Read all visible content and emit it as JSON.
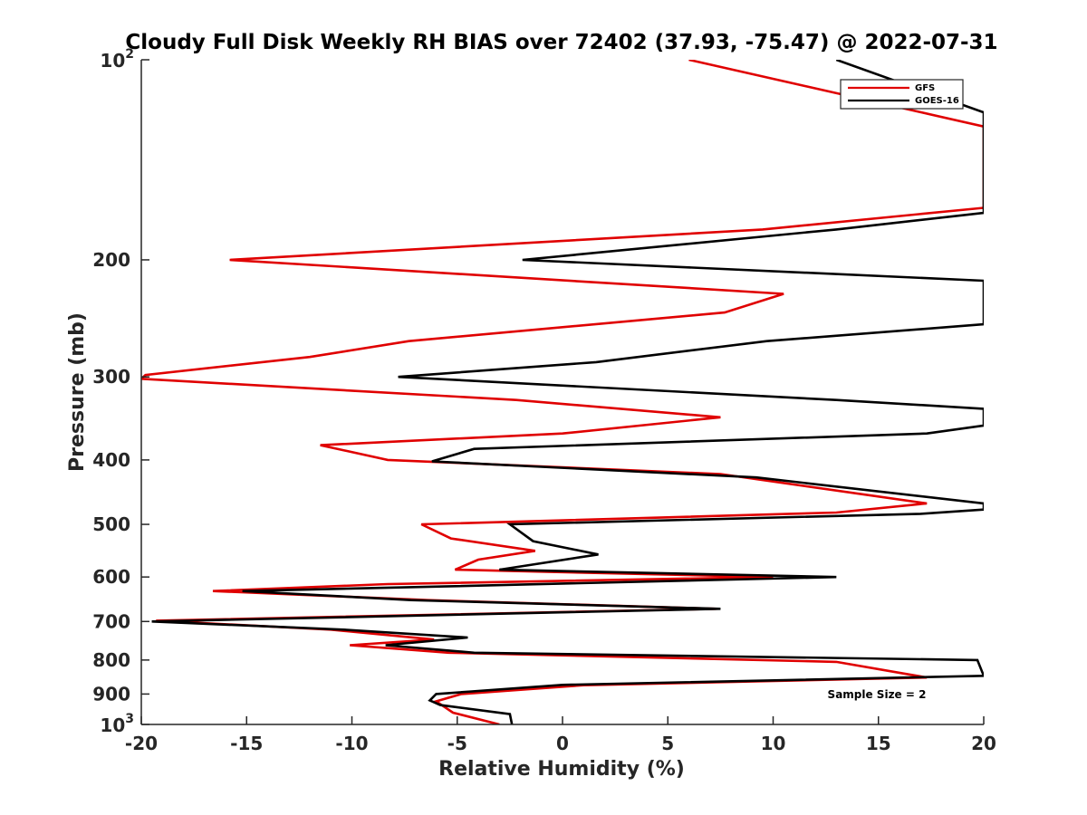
{
  "chart_data": {
    "type": "line",
    "title": "Cloudy Full Disk Weekly RH BIAS over 72402 (37.93, -75.47) @ 2022-07-31",
    "xlabel": "Relative Humidity (%)",
    "ylabel": "Pressure (mb)",
    "xlim": [
      -20,
      20
    ],
    "ylim": [
      100,
      1000
    ],
    "yscale": "log",
    "y_reversed": true,
    "x_ticks": [
      "-20",
      "-15",
      "-10",
      "-5",
      "0",
      "5",
      "10",
      "15",
      "20"
    ],
    "y_ticks": [
      {
        "value": 100,
        "base": "10",
        "exp": "2"
      },
      {
        "value": 200,
        "label": "200"
      },
      {
        "value": 300,
        "label": "300"
      },
      {
        "value": 400,
        "label": "400"
      },
      {
        "value": 500,
        "label": "500"
      },
      {
        "value": 600,
        "label": "600"
      },
      {
        "value": 700,
        "label": "700"
      },
      {
        "value": 800,
        "label": "800"
      },
      {
        "value": 900,
        "label": "900"
      },
      {
        "value": 1000,
        "base": "10",
        "exp": "3"
      }
    ],
    "grid": false,
    "legend_position": "top-right",
    "annotation": "Sample Size = 2",
    "series": [
      {
        "name": "GFS",
        "color": "#e00000",
        "points": [
          [
            6,
            100
          ],
          [
            20,
            126
          ],
          [
            20,
            167
          ],
          [
            9.5,
            180
          ],
          [
            -15.8,
            200
          ],
          [
            10.5,
            225
          ],
          [
            7.7,
            240
          ],
          [
            -7.3,
            265
          ],
          [
            -12,
            280
          ],
          [
            -19.8,
            298
          ],
          [
            -20,
            302
          ],
          [
            -2.2,
            325
          ],
          [
            7.5,
            345
          ],
          [
            0,
            365
          ],
          [
            -11.5,
            380
          ],
          [
            -8.3,
            400
          ],
          [
            7.5,
            420
          ],
          [
            17.3,
            465
          ],
          [
            13,
            480
          ],
          [
            -6.7,
            500
          ],
          [
            -5.3,
            525
          ],
          [
            -1.3,
            548
          ],
          [
            -4,
            565
          ],
          [
            -5.1,
            585
          ],
          [
            10,
            600
          ],
          [
            -8.3,
            615
          ],
          [
            -16.6,
            630
          ],
          [
            -6.4,
            650
          ],
          [
            7.3,
            670
          ],
          [
            -19.3,
            698
          ],
          [
            -11,
            720
          ],
          [
            -6.1,
            745
          ],
          [
            -10.1,
            760
          ],
          [
            -5.4,
            780
          ],
          [
            13,
            805
          ],
          [
            17.3,
            850
          ],
          [
            1,
            873
          ],
          [
            -4.8,
            900
          ],
          [
            -6,
            923
          ],
          [
            -5.2,
            960
          ],
          [
            -3,
            1000
          ]
        ]
      },
      {
        "name": "GOES-16",
        "color": "#000000",
        "points": [
          [
            13,
            100
          ],
          [
            20,
            120
          ],
          [
            20,
            170
          ],
          [
            13,
            180
          ],
          [
            -1.9,
            200
          ],
          [
            20,
            215
          ],
          [
            20,
            250
          ],
          [
            9.7,
            265
          ],
          [
            1.6,
            285
          ],
          [
            -7.8,
            300
          ],
          [
            13,
            325
          ],
          [
            20,
            335
          ],
          [
            20,
            355
          ],
          [
            17.3,
            365
          ],
          [
            -4.2,
            385
          ],
          [
            -6.2,
            402
          ],
          [
            9.2,
            425
          ],
          [
            20,
            465
          ],
          [
            20,
            475
          ],
          [
            17,
            482
          ],
          [
            -2.5,
            500
          ],
          [
            -1.4,
            530
          ],
          [
            1.7,
            555
          ],
          [
            -3,
            585
          ],
          [
            13,
            600
          ],
          [
            -5.6,
            620
          ],
          [
            -15.2,
            630
          ],
          [
            -7.2,
            650
          ],
          [
            7.5,
            670
          ],
          [
            -19.5,
            700
          ],
          [
            -10.4,
            720
          ],
          [
            -4.5,
            740
          ],
          [
            -8.4,
            760
          ],
          [
            -4.2,
            780
          ],
          [
            19.7,
            800
          ],
          [
            20,
            845
          ],
          [
            0,
            872
          ],
          [
            -6,
            900
          ],
          [
            -6.3,
            920
          ],
          [
            -5.8,
            935
          ],
          [
            -2.5,
            965
          ],
          [
            -2.4,
            1000
          ]
        ]
      }
    ]
  }
}
